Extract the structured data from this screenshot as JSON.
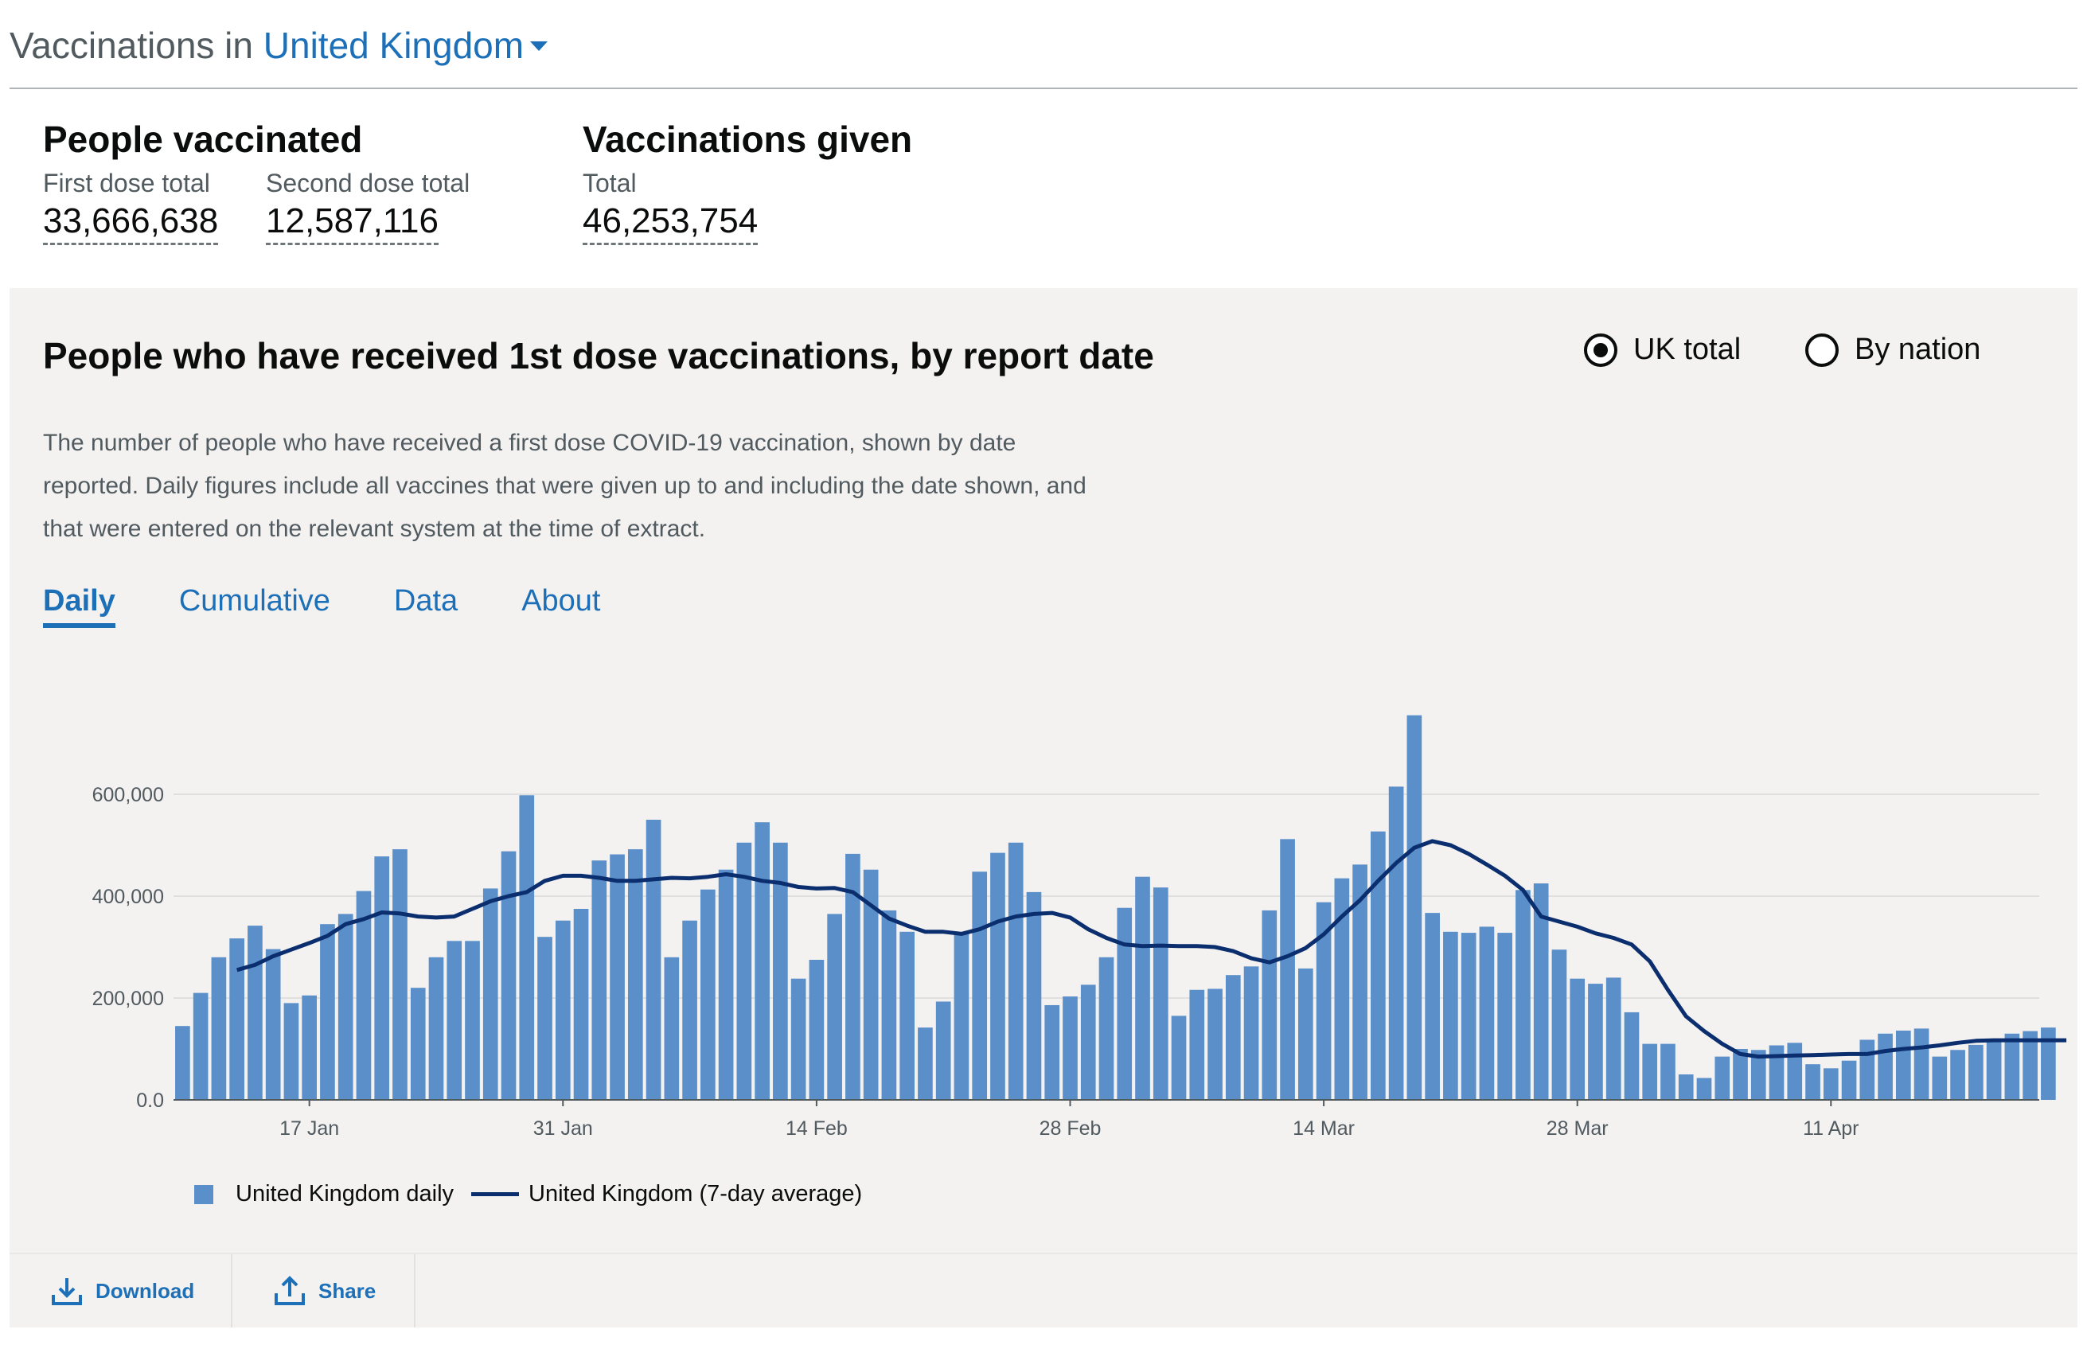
{
  "header": {
    "prefix": "Vaccinations in",
    "area": "United Kingdom"
  },
  "headline": {
    "people_vaccinated": {
      "title": "People vaccinated",
      "first_label": "First dose total",
      "first_value": "33,666,638",
      "second_label": "Second dose total",
      "second_value": "12,587,116"
    },
    "vaccinations_given": {
      "title": "Vaccinations given",
      "total_label": "Total",
      "total_value": "46,253,754"
    }
  },
  "card": {
    "title": "People who have received 1st dose vaccinations, by report date",
    "radio_options": [
      {
        "label": "UK total",
        "selected": true
      },
      {
        "label": "By nation",
        "selected": false
      }
    ],
    "description": "The number of people who have received a first dose COVID-19 vaccination, shown by date reported. Daily figures include all vaccines that were given up to and including the date shown, and that were entered on the relevant system at the time of extract.",
    "tabs": [
      {
        "label": "Daily",
        "active": true
      },
      {
        "label": "Cumulative",
        "active": false
      },
      {
        "label": "Data",
        "active": false
      },
      {
        "label": "About",
        "active": false
      }
    ],
    "footer": {
      "download_label": "Download",
      "share_label": "Share"
    }
  },
  "colors": {
    "accent": "#1d70b8",
    "bar": "#5a8fc9",
    "average_line": "#0b2e6f",
    "card_bg": "#f3f2f1"
  },
  "icons": {
    "area_dropdown": "caret-down-icon",
    "download": "download-icon",
    "share": "share-icon"
  },
  "chart_data": {
    "type": "bar",
    "title": "People who have received 1st dose vaccinations, by report date",
    "x_range": [
      "2021-01-10",
      "2021-04-22"
    ],
    "y_range": [
      0,
      750000
    ],
    "y_ticks": [
      "0.0",
      "200,000",
      "400,000",
      "600,000"
    ],
    "y_tick_values": [
      0,
      200000,
      400000,
      600000
    ],
    "x_ticks": [
      "17 Jan",
      "31 Jan",
      "14 Feb",
      "28 Feb",
      "14 Mar",
      "28 Mar",
      "11 Apr"
    ],
    "x_tick_dates": [
      "2021-01-17",
      "2021-01-31",
      "2021-02-14",
      "2021-02-28",
      "2021-03-14",
      "2021-03-28",
      "2021-04-11"
    ],
    "grid": true,
    "legend_position": "bottom-left",
    "series": [
      {
        "name": "United Kingdom daily",
        "type": "bar",
        "start_date": "2021-01-10",
        "values": [
          145000,
          210000,
          280000,
          317000,
          342000,
          296000,
          190000,
          205000,
          345000,
          365000,
          410000,
          478000,
          492000,
          220000,
          280000,
          312000,
          312000,
          415000,
          488000,
          598000,
          320000,
          352000,
          375000,
          470000,
          482000,
          492000,
          550000,
          280000,
          352000,
          413000,
          452000,
          505000,
          545000,
          505000,
          238000,
          275000,
          365000,
          483000,
          452000,
          372000,
          330000,
          142000,
          193000,
          328000,
          448000,
          485000,
          505000,
          408000,
          186000,
          203000,
          226000,
          280000,
          377000,
          438000,
          417000,
          165000,
          216000,
          218000,
          245000,
          262000,
          372000,
          512000,
          258000,
          388000,
          435000,
          462000,
          527000,
          615000,
          755000,
          367000,
          330000,
          328000,
          340000,
          328000,
          412000,
          425000,
          295000,
          238000,
          228000,
          240000,
          172000,
          110000,
          110000,
          50000,
          43000,
          85000,
          100000,
          98000,
          107000,
          112000,
          70000,
          62000,
          77000,
          118000,
          130000,
          136000,
          140000,
          85000,
          98000,
          108000,
          120000,
          130000,
          135000,
          142000
        ]
      },
      {
        "name": "United Kingdom (7-day average)",
        "type": "line",
        "start_date": "2021-01-13",
        "values": [
          255000,
          265000,
          282000,
          295000,
          308000,
          322000,
          345000,
          355000,
          368000,
          366000,
          360000,
          358000,
          360000,
          375000,
          390000,
          400000,
          408000,
          430000,
          440000,
          440000,
          436000,
          430000,
          430000,
          433000,
          436000,
          435000,
          438000,
          443000,
          438000,
          430000,
          426000,
          418000,
          415000,
          416000,
          408000,
          382000,
          356000,
          342000,
          330000,
          330000,
          326000,
          335000,
          350000,
          360000,
          365000,
          367000,
          358000,
          335000,
          318000,
          305000,
          302000,
          303000,
          302000,
          302000,
          300000,
          292000,
          278000,
          270000,
          282000,
          298000,
          325000,
          360000,
          392000,
          430000,
          465000,
          495000,
          508000,
          500000,
          483000,
          462000,
          440000,
          412000,
          360000,
          350000,
          340000,
          327000,
          318000,
          305000,
          272000,
          216000,
          164000,
          135000,
          110000,
          90000,
          85000,
          86000,
          87000,
          88000,
          89000,
          90000,
          90000,
          96000,
          100000,
          103000,
          107000,
          112000,
          116000,
          117000,
          117000,
          117000,
          117000,
          117000
        ]
      }
    ]
  }
}
